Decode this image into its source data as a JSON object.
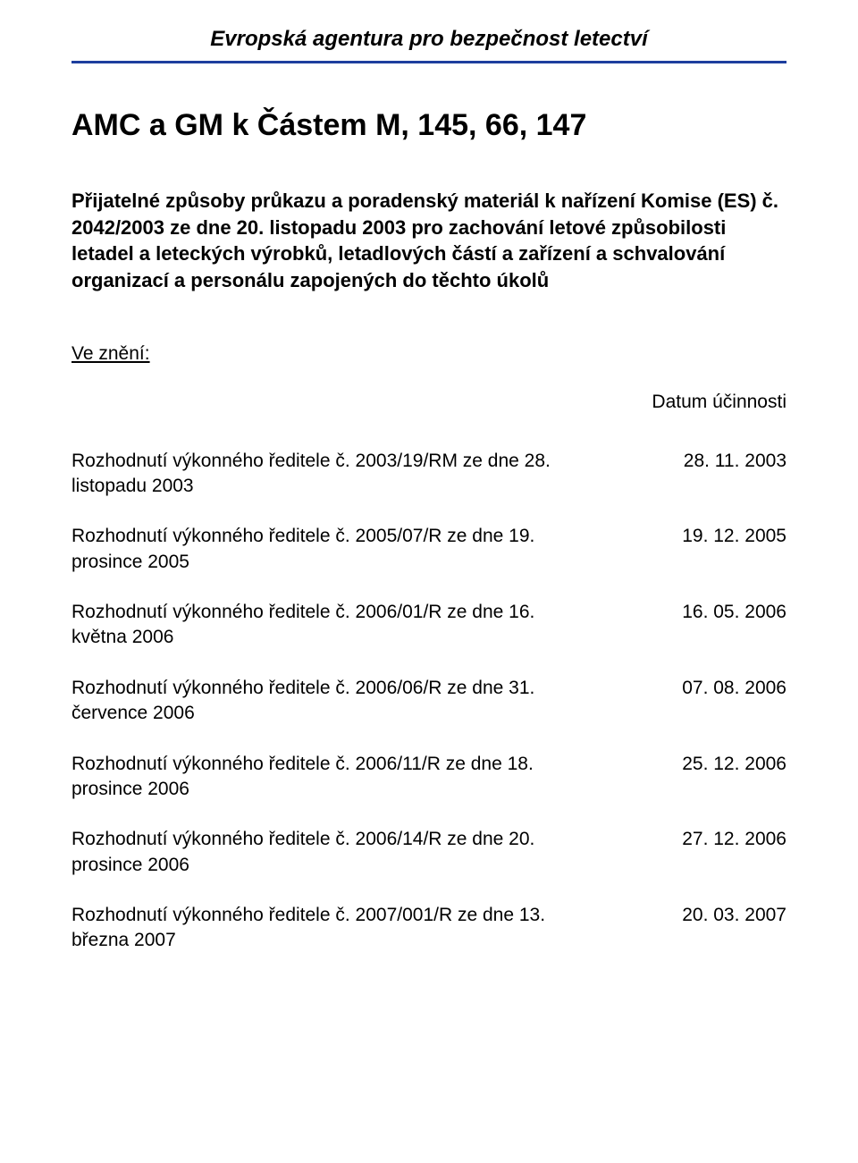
{
  "colors": {
    "rule": "#1d3e9e",
    "text": "#000000",
    "background": "#ffffff"
  },
  "header": {
    "agency": "Evropská agentura pro bezpečnost letectví"
  },
  "title": "AMC a GM k Částem M, 145, 66, 147",
  "subtitle": "Přijatelné způsoby průkazu a poradenský materiál k nařízení Komise (ES) č. 2042/2003 ze dne 20. listopadu 2003 pro zachování letové způsobilosti letadel a leteckých výrobků, letadlových částí a zařízení a schvalování organizací a personálu zapojených do těchto úkolů",
  "amend_label": "Ve znění:",
  "effective_label": "Datum účinnosti",
  "decisions": [
    {
      "text": "Rozhodnutí výkonného ředitele č. 2003/19/RM ze dne 28. listopadu 2003",
      "date": "28. 11. 2003"
    },
    {
      "text": "Rozhodnutí výkonného ředitele č. 2005/07/R ze dne 19. prosince 2005",
      "date": "19. 12. 2005"
    },
    {
      "text": "Rozhodnutí výkonného ředitele č. 2006/01/R ze dne 16. května 2006",
      "date": "16. 05. 2006"
    },
    {
      "text": "Rozhodnutí výkonného ředitele č. 2006/06/R ze dne 31. července 2006",
      "date": "07. 08. 2006"
    },
    {
      "text": "Rozhodnutí výkonného ředitele č. 2006/11/R ze dne 18. prosince 2006",
      "date": "25. 12. 2006"
    },
    {
      "text": "Rozhodnutí výkonného ředitele č. 2006/14/R ze dne 20. prosince 2006",
      "date": "27. 12. 2006"
    },
    {
      "text": "Rozhodnutí výkonného ředitele č. 2007/001/R ze dne 13. března 2007",
      "date": "20. 03. 2007"
    }
  ]
}
